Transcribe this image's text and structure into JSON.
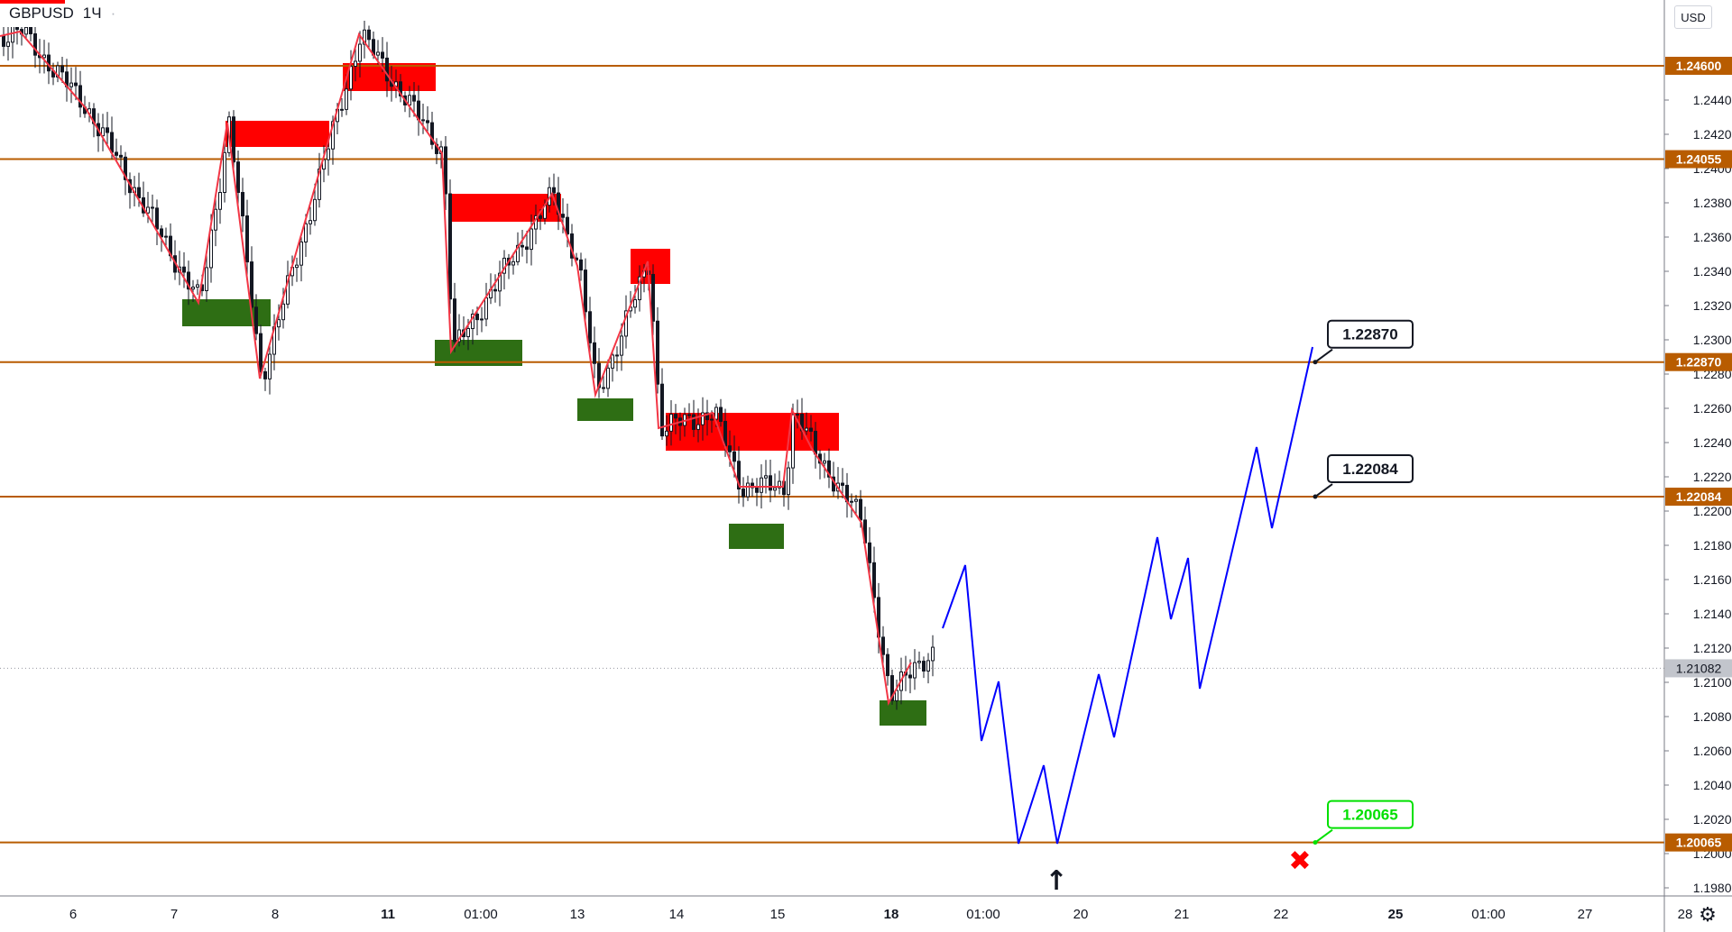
{
  "symbol": "GBPUSD",
  "interval": "1Ч",
  "currency": "USD",
  "icons": {
    "settings": "gear-icon",
    "arrow": "up-arrow-icon",
    "cross": "x-mark-icon"
  },
  "colors": {
    "candle": "#131722",
    "zigzag": "#f23645",
    "forecast": "#0000ff",
    "level_line": "#b85c00",
    "supply_zone": "#ff0000",
    "demand_zone": "#2e6e14",
    "cross": "#ff0000",
    "callout_green": "#00e000"
  },
  "chart_data": {
    "type": "line",
    "series": [],
    "y_axis": {
      "range": [
        1.1965,
        1.2485
      ],
      "ticks": [
        "1.19800",
        "1.20000",
        "1.20200",
        "1.20400",
        "1.20600",
        "1.20800",
        "1.21000",
        "1.21200",
        "1.21400",
        "1.21600",
        "1.21800",
        "1.22000",
        "1.22200",
        "1.22400",
        "1.22600",
        "1.22800",
        "1.23000",
        "1.23200",
        "1.23400",
        "1.23600",
        "1.23800",
        "1.24000",
        "1.24200",
        "1.24400"
      ],
      "tick_values": [
        1.198,
        1.2,
        1.202,
        1.204,
        1.206,
        1.208,
        1.21,
        1.212,
        1.214,
        1.216,
        1.218,
        1.22,
        1.222,
        1.224,
        1.226,
        1.228,
        1.23,
        1.232,
        1.234,
        1.236,
        1.238,
        1.24,
        1.242,
        1.244
      ]
    },
    "x_axis": {
      "labels": [
        "6",
        "7",
        "8",
        "11",
        "01:00",
        "13",
        "14",
        "15",
        "18",
        "01:00",
        "20",
        "21",
        "22",
        "25",
        "01:00",
        "27",
        "28"
      ],
      "bold": [
        "11",
        "18",
        "25"
      ]
    },
    "levels": [
      {
        "label": "1.24600",
        "value": 1.246
      },
      {
        "label": "1.24055",
        "value": 1.24055
      },
      {
        "label": "1.22870",
        "value": 1.2287
      },
      {
        "label": "1.22084",
        "value": 1.22084
      },
      {
        "label": "1.20065",
        "value": 1.20065
      }
    ],
    "last_price": {
      "label": "1.21082",
      "value": 1.21082
    },
    "callouts": [
      {
        "label": "1.22870",
        "value": 1.2287,
        "style": "black"
      },
      {
        "label": "1.22084",
        "value": 1.22084,
        "style": "black"
      },
      {
        "label": "1.20065",
        "value": 1.20065,
        "style": "green"
      }
    ],
    "grid": false,
    "legend": "none"
  }
}
